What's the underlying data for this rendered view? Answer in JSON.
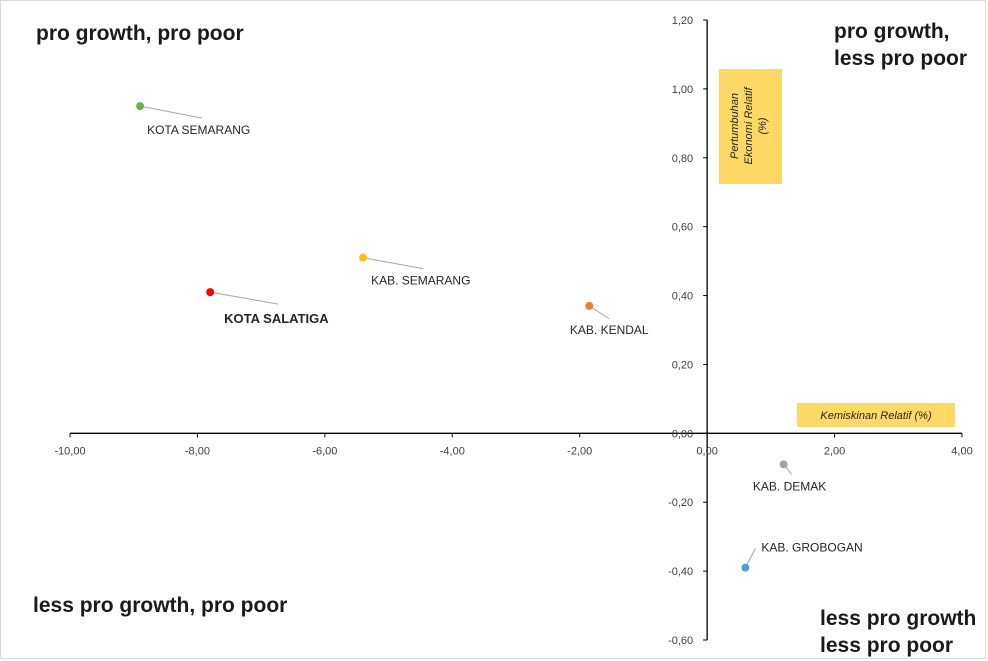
{
  "chart_data": {
    "type": "scatter",
    "xlabel": "Kemiskinan Relatif (%)",
    "ylabel": "Pertumbuhan Ekonomi Relatif (%)",
    "xlim": [
      -10,
      4
    ],
    "ylim": [
      -0.6,
      1.2
    ],
    "x_ticks": [
      "-10,00",
      "-8,00",
      "-6,00",
      "-4,00",
      "-2,00",
      "0,00",
      "2,00",
      "4,00"
    ],
    "y_ticks": [
      "1,20",
      "1,00",
      "0,80",
      "0,60",
      "0,40",
      "0,20",
      "0,00",
      "-0,20",
      "-0,40",
      "-0,60"
    ],
    "axis_title_background": "#ffd966",
    "quadrant_labels": {
      "top_left": [
        "pro growth,  pro poor"
      ],
      "top_right": [
        "pro growth,",
        "less pro poor"
      ],
      "bottom_left": [
        "less pro growth, pro poor"
      ],
      "bottom_right": [
        "less pro growth",
        "less pro poor"
      ]
    },
    "points": [
      {
        "name": "KOTA SEMARANG",
        "x": -8.9,
        "y": 0.95,
        "color": "#70ad47"
      },
      {
        "name": "KOTA SALATIGA",
        "x": -7.8,
        "y": 0.41,
        "color": "#ff0000",
        "bold": true
      },
      {
        "name": "KAB. SEMARANG",
        "x": -5.4,
        "y": 0.51,
        "color": "#ffc000"
      },
      {
        "name": "KAB. KENDAL",
        "x": -1.85,
        "y": 0.37,
        "color": "#ed7d31"
      },
      {
        "name": "KAB. DEMAK",
        "x": 1.2,
        "y": -0.09,
        "color": "#a5a5a5"
      },
      {
        "name": "KAB. GROBOGAN",
        "x": 0.6,
        "y": -0.39,
        "color": "#5b9bd5"
      }
    ]
  }
}
